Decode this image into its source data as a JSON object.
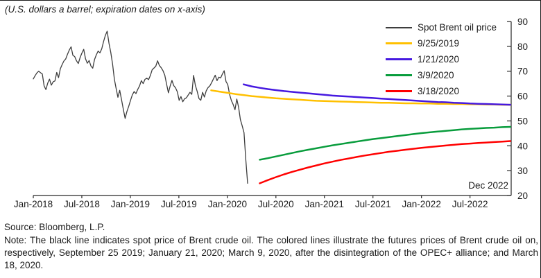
{
  "footer": {
    "source": "Source: Bloomberg, L.P.",
    "note": "Note: The black line indicates spot price of Brent crude oil. The colored lines illustrate the futures prices of Brent crude oil on, respectively, September 25 2019; January 21, 2020; March 9, 2020, after the disintegration of the OPEC+ alliance; and March 18, 2020."
  },
  "chart_data": {
    "type": "line",
    "title": "(U.S. dollars a barrel; expiration dates on x-axis)",
    "annotation": "Dec 2022",
    "legend_position": "top-right",
    "grid": "off",
    "x_axis": {
      "unit": "months since Jan-2018",
      "tick_months": [
        0,
        6,
        12,
        18,
        24,
        30,
        36,
        42,
        48,
        54
      ],
      "tick_labels": [
        "Jan-2018",
        "Jul-2018",
        "Jan-2019",
        "Jul-2019",
        "Jan-2020",
        "Jul-2020",
        "Jan-2021",
        "Jul-2021",
        "Jan-2022",
        "Jul-2022"
      ]
    },
    "y_axis": {
      "min": 20,
      "max": 90,
      "side": "right",
      "tick_values": [
        90,
        80,
        70,
        60,
        50,
        40,
        30,
        20
      ]
    },
    "series": [
      {
        "name": "Spot Brent oil price",
        "color": "#3d3d3d",
        "width": 1.3,
        "x_start": 0,
        "x_step": 0.2227,
        "values": [
          66.9,
          68.2,
          69.3,
          70.0,
          69.4,
          68.9,
          64.1,
          62.6,
          65.2,
          66.8,
          64.4,
          65.7,
          66.1,
          69.5,
          67.4,
          71.0,
          72.6,
          74.1,
          74.9,
          76.8,
          78.5,
          79.8,
          76.4,
          75.9,
          74.2,
          73.1,
          75.5,
          77.3,
          78.8,
          75.0,
          73.2,
          74.3,
          72.1,
          71.2,
          74.7,
          76.6,
          78.1,
          77.4,
          79.0,
          81.9,
          84.4,
          86.1,
          81.3,
          77.6,
          72.9,
          66.8,
          63.1,
          59.5,
          62.3,
          58.6,
          54.7,
          51.0,
          53.8,
          55.9,
          58.3,
          60.5,
          61.8,
          61.0,
          62.7,
          64.1,
          66.2,
          65.0,
          66.7,
          67.2,
          66.6,
          68.3,
          70.6,
          71.3,
          72.0,
          74.2,
          72.3,
          71.4,
          70.2,
          68.4,
          64.8,
          61.3,
          64.0,
          66.3,
          64.2,
          63.3,
          61.7,
          58.3,
          59.8,
          57.7,
          58.9,
          59.3,
          60.4,
          61.5,
          60.7,
          68.3,
          64.3,
          61.9,
          59.0,
          58.3,
          61.5,
          59.6,
          62.1,
          63.4,
          64.1,
          65.4,
          66.9,
          68.4,
          66.2,
          67.6,
          67.3,
          68.9,
          70.2,
          65.9,
          64.6,
          60.7,
          58.2,
          56.6,
          54.5,
          58.8,
          55.5,
          50.5,
          48.0,
          45.3,
          34.4,
          24.9
        ]
      },
      {
        "name": "9/25/2019",
        "color": "#FFC000",
        "width": 2.5,
        "x_start": 22,
        "x_step": 1,
        "values": [
          62.3,
          61.8,
          61.3,
          60.8,
          60.4,
          60.0,
          59.7,
          59.4,
          59.1,
          58.9,
          58.7,
          58.5,
          58.3,
          58.1,
          58.0,
          57.9,
          57.8,
          57.7,
          57.6,
          57.5,
          57.4,
          57.3,
          57.3,
          57.2,
          57.1,
          57.1,
          57.0,
          57.0,
          56.9,
          56.9,
          56.8,
          56.8,
          56.7,
          56.7,
          56.6,
          56.6,
          56.5,
          56.5
        ]
      },
      {
        "name": "1/21/2020",
        "color": "#4619E0",
        "width": 2.5,
        "x_start": 26,
        "x_step": 1,
        "values": [
          64.7,
          63.9,
          63.3,
          62.8,
          62.4,
          62.0,
          61.7,
          61.4,
          61.1,
          60.8,
          60.5,
          60.2,
          60.0,
          59.8,
          59.6,
          59.4,
          59.2,
          59.0,
          58.8,
          58.6,
          58.4,
          58.2,
          58.0,
          57.8,
          57.6,
          57.5,
          57.3,
          57.2,
          57.0,
          56.9,
          56.8,
          56.7,
          56.6,
          56.5
        ]
      },
      {
        "name": "3/9/2020",
        "color": "#089C3C",
        "width": 2.5,
        "x_start": 28,
        "x_step": 1,
        "values": [
          34.4,
          35.0,
          35.7,
          36.4,
          37.1,
          37.8,
          38.4,
          39.0,
          39.6,
          40.2,
          40.7,
          41.2,
          41.7,
          42.2,
          42.7,
          43.1,
          43.5,
          43.9,
          44.3,
          44.7,
          45.1,
          45.4,
          45.7,
          46.0,
          46.3,
          46.6,
          46.8,
          47.0,
          47.2,
          47.3,
          47.5,
          47.6
        ]
      },
      {
        "name": "3/18/2020",
        "color": "#FF0000",
        "width": 2.5,
        "x_start": 28,
        "x_step": 1,
        "values": [
          24.9,
          26.2,
          27.4,
          28.5,
          29.5,
          30.4,
          31.3,
          32.1,
          32.9,
          33.6,
          34.3,
          34.9,
          35.5,
          36.1,
          36.6,
          37.1,
          37.6,
          38.0,
          38.4,
          38.8,
          39.2,
          39.5,
          39.8,
          40.1,
          40.4,
          40.7,
          40.9,
          41.1,
          41.3,
          41.5,
          41.7,
          41.9
        ]
      }
    ]
  }
}
